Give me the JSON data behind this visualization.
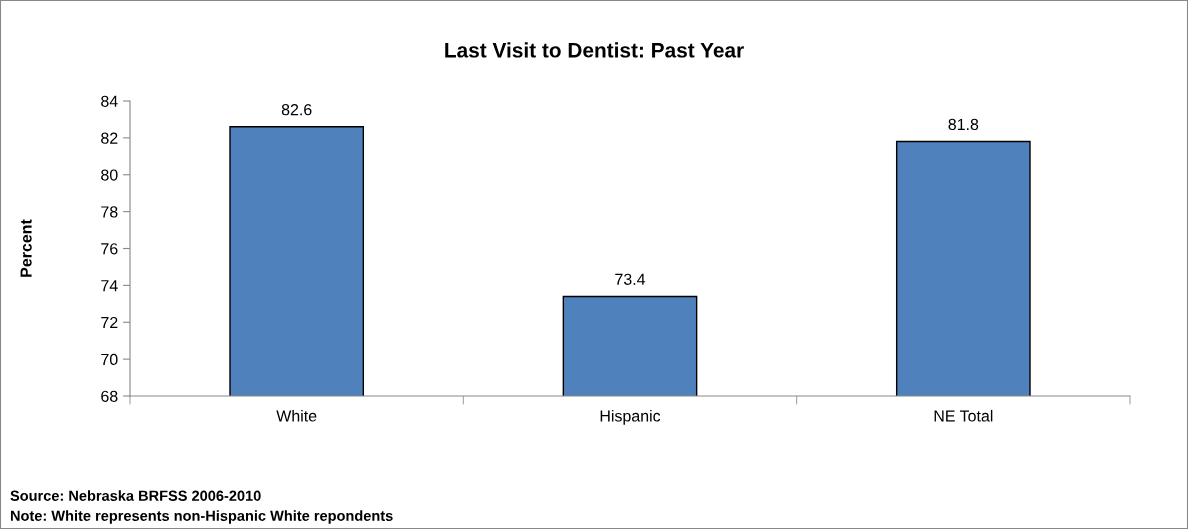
{
  "chart_data": {
    "type": "bar",
    "title": "Last Visit to Dentist: Past Year",
    "ylabel": "Percent",
    "categories": [
      "White",
      "Hispanic",
      "NE Total"
    ],
    "values": [
      82.6,
      73.4,
      81.8
    ],
    "color": "#4f81bd",
    "data_labels": true,
    "ylim": [
      68,
      84
    ],
    "yticks": [
      68,
      70,
      72,
      74,
      76,
      78,
      80,
      82,
      84
    ],
    "grid": false,
    "legend": false,
    "annotations": [
      "Source: Nebraska BRFSS 2006-2010",
      "Note: White represents non-Hispanic White repondents"
    ]
  }
}
